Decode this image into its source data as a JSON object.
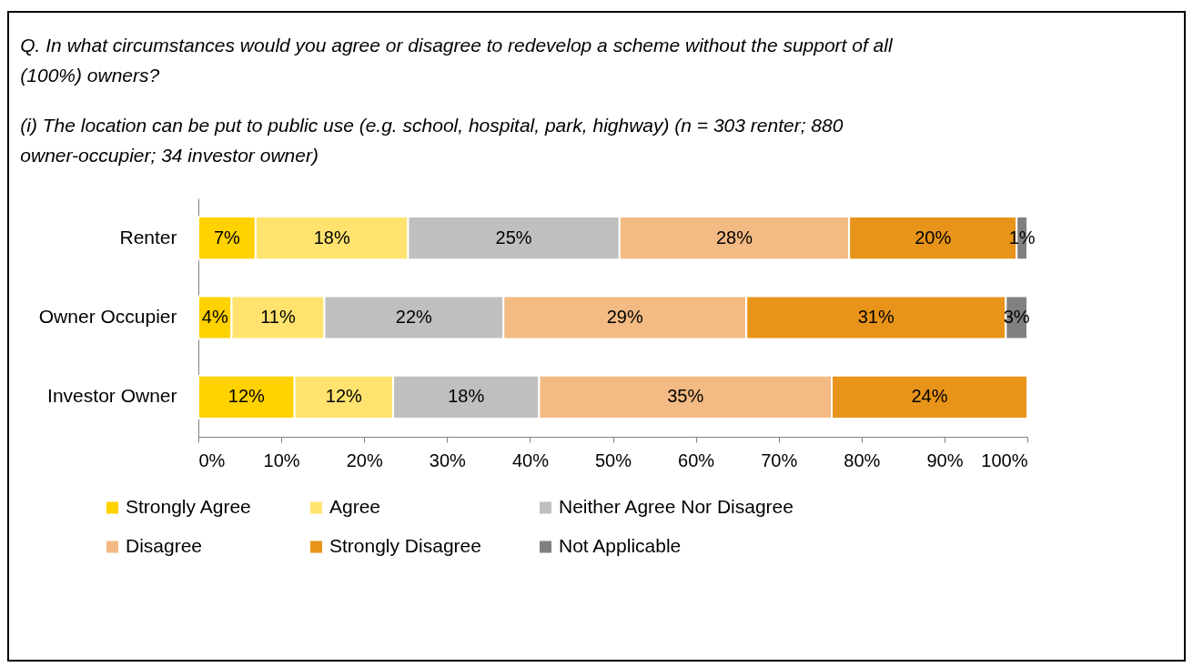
{
  "chart_data": {
    "type": "bar",
    "orientation": "horizontal",
    "stacked": true,
    "title": "Q. In what circumstances would you agree or disagree to redevelop a scheme without the support of all (100%) owners?",
    "subtitle": "(i) The location can be put to public use (e.g. school, hospital, park, highway) (n = 303 renter; 880 owner-occupier; 34 investor owner)",
    "categories": [
      "Renter",
      "Owner Occupier",
      "Investor Owner"
    ],
    "series": [
      {
        "name": "Strongly Agree",
        "color": "#ffd200",
        "values": [
          6.9,
          4.0,
          11.6
        ],
        "value_labels": [
          "7%",
          "4%",
          "12%"
        ]
      },
      {
        "name": "Agree",
        "color": "#ffe36e",
        "values": [
          18.4,
          11.2,
          11.9
        ],
        "value_labels": [
          "18%",
          "11%",
          "12%"
        ]
      },
      {
        "name": "Neither Agree Nor Disagree",
        "color": "#bfbfbf",
        "values": [
          25.5,
          21.6,
          17.6
        ],
        "value_labels": [
          "25%",
          "22%",
          "18%"
        ]
      },
      {
        "name": "Disagree",
        "color": "#f3ba84",
        "values": [
          27.7,
          29.3,
          35.3
        ],
        "value_labels": [
          "28%",
          "29%",
          "35%"
        ]
      },
      {
        "name": "Strongly Disagree",
        "color": "#e8941a",
        "values": [
          20.2,
          31.3,
          23.6
        ],
        "value_labels": [
          "20%",
          "31%",
          "24%"
        ]
      },
      {
        "name": "Not Applicable",
        "color": "#808080",
        "values": [
          1.3,
          2.6,
          null
        ],
        "value_labels": [
          "1%",
          "3%",
          null
        ]
      }
    ],
    "xlim": [
      0,
      100
    ],
    "xticks": [
      {
        "value": 0,
        "label": "0%"
      },
      {
        "value": 10,
        "label": "10%"
      },
      {
        "value": 20,
        "label": "20%"
      },
      {
        "value": 30,
        "label": "30%"
      },
      {
        "value": 40,
        "label": "40%"
      },
      {
        "value": 50,
        "label": "50%"
      },
      {
        "value": 60,
        "label": "60%"
      },
      {
        "value": 70,
        "label": "70%"
      },
      {
        "value": 80,
        "label": "80%"
      },
      {
        "value": 90,
        "label": "90%"
      },
      {
        "value": 100,
        "label": "100%"
      }
    ],
    "grid": false,
    "legend": "bottom"
  }
}
